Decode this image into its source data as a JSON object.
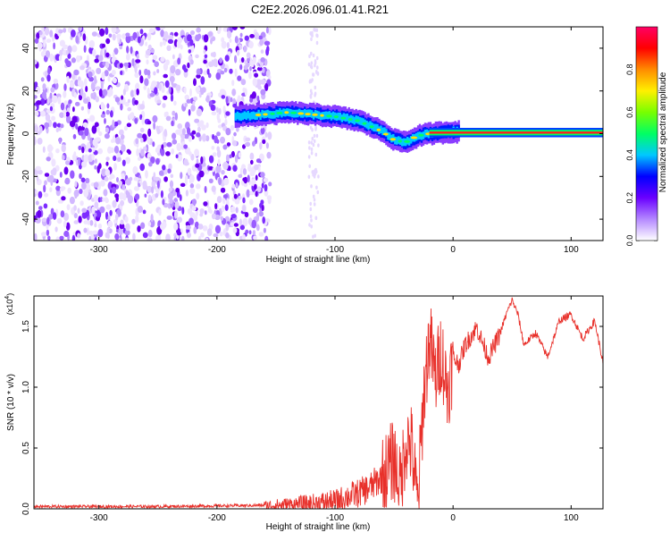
{
  "figure": {
    "title": "C2E2.2026.096.01.41.R21"
  },
  "chart_data": [
    {
      "type": "heatmap",
      "xlabel": "Height of straight line (km)",
      "ylabel": "Frequency (Hz)",
      "xlim": [
        -355,
        127
      ],
      "ylim": [
        -50,
        50
      ],
      "x_ticks": [
        -300,
        -200,
        -100,
        0,
        100
      ],
      "y_ticks": [
        -40,
        -20,
        0,
        20,
        40
      ],
      "colorbar": {
        "label": "Normalized spectral amplitude",
        "range": [
          0,
          1
        ],
        "ticks": [
          "0.0",
          "0.2",
          "0.4",
          "0.6",
          "0.8"
        ],
        "tick_values": [
          0.0,
          0.2,
          0.4,
          0.6,
          0.8
        ],
        "colors": [
          "#ffffff",
          "#b488ff",
          "#6a00ff",
          "#0000ff",
          "#00c8ff",
          "#00ff64",
          "#78ff00",
          "#fff000",
          "#ff8c00",
          "#ff0000",
          "#ff0064"
        ]
      },
      "ridge": {
        "x": [
          -185,
          -160,
          -140,
          -120,
          -100,
          -80,
          -60,
          -50,
          -40,
          -30,
          -20,
          -10,
          0,
          10,
          127
        ],
        "y": [
          8,
          9,
          10,
          9,
          8,
          6,
          1,
          -3,
          -4,
          -1,
          0,
          0.5,
          1,
          0.5,
          0.5
        ]
      },
      "noise_region_x": [
        -355,
        -155
      ]
    },
    {
      "type": "line",
      "xlabel": "Height of straight line (km)",
      "ylabel": "SNR (10 * v/v)",
      "y_multiplier": "(x10",
      "y_multiplier_exp": "4",
      "y_multiplier_close": ")",
      "xlim": [
        -355,
        127
      ],
      "ylim": [
        0,
        1.75
      ],
      "x_ticks": [
        -300,
        -200,
        -100,
        0,
        100
      ],
      "y_ticks": [
        "0.0",
        "0.5",
        "1.0",
        "1.5"
      ],
      "y_tick_values": [
        0.0,
        0.5,
        1.0,
        1.5
      ],
      "series": [
        {
          "color": "#e8302a",
          "x": [
            -355,
            -250,
            -160,
            -140,
            -120,
            -100,
            -90,
            -80,
            -70,
            -60,
            -55,
            -50,
            -45,
            -40,
            -35,
            -30,
            -25,
            -20,
            -15,
            -10,
            -5,
            0,
            5,
            10,
            20,
            30,
            40,
            45,
            50,
            55,
            60,
            70,
            80,
            90,
            100,
            110,
            120,
            127
          ],
          "y": [
            0.02,
            0.02,
            0.03,
            0.04,
            0.05,
            0.07,
            0.11,
            0.14,
            0.19,
            0.28,
            0.36,
            0.45,
            0.2,
            0.6,
            0.55,
            0.05,
            0.95,
            1.45,
            1.1,
            1.35,
            1.0,
            1.25,
            1.2,
            1.35,
            1.5,
            1.25,
            1.45,
            1.6,
            1.72,
            1.6,
            1.35,
            1.45,
            1.25,
            1.55,
            1.6,
            1.4,
            1.55,
            1.2
          ]
        }
      ]
    }
  ]
}
